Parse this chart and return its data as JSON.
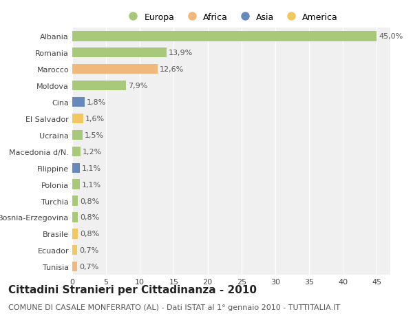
{
  "countries": [
    "Albania",
    "Romania",
    "Marocco",
    "Moldova",
    "Cina",
    "El Salvador",
    "Ucraina",
    "Macedonia d/N.",
    "Filippine",
    "Polonia",
    "Turchia",
    "Bosnia-Erzegovina",
    "Brasile",
    "Ecuador",
    "Tunisia"
  ],
  "values": [
    45.0,
    13.9,
    12.6,
    7.9,
    1.8,
    1.6,
    1.5,
    1.2,
    1.1,
    1.1,
    0.8,
    0.8,
    0.8,
    0.7,
    0.7
  ],
  "continents": [
    "Europa",
    "Europa",
    "Africa",
    "Europa",
    "Asia",
    "America",
    "Europa",
    "Europa",
    "Asia",
    "Europa",
    "Europa",
    "Europa",
    "America",
    "America",
    "Africa"
  ],
  "continent_colors": {
    "Europa": "#a8c87a",
    "Africa": "#f0b87a",
    "Asia": "#6688bb",
    "America": "#f0c860"
  },
  "title": "Cittadini Stranieri per Cittadinanza - 2010",
  "subtitle": "COMUNE DI CASALE MONFERRATO (AL) - Dati ISTAT al 1° gennaio 2010 - TUTTITALIA.IT",
  "xlim": [
    0,
    47
  ],
  "xticks": [
    0,
    5,
    10,
    15,
    20,
    25,
    30,
    35,
    40,
    45
  ],
  "background_color": "#ffffff",
  "plot_background": "#f0f0f0",
  "grid_color": "#ffffff",
  "bar_height": 0.6,
  "title_fontsize": 11,
  "subtitle_fontsize": 8,
  "tick_fontsize": 8,
  "value_fontsize": 8,
  "legend_order": [
    "Europa",
    "Africa",
    "Asia",
    "America"
  ]
}
